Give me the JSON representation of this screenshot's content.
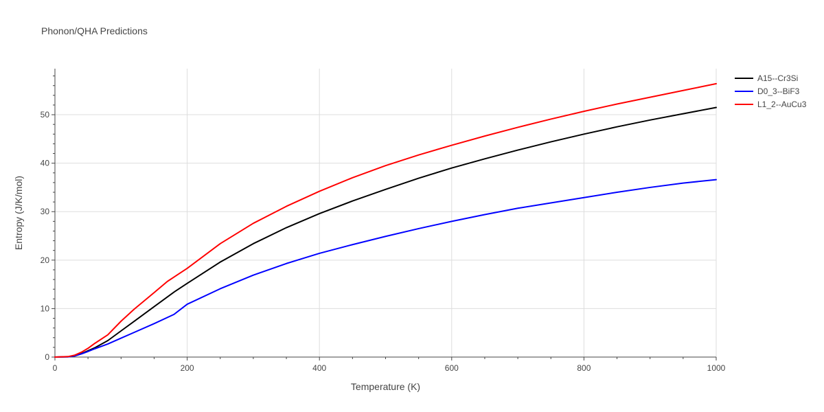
{
  "chart_data": {
    "type": "line",
    "title": "Phonon/QHA Predictions",
    "xlabel": "Temperature (K)",
    "ylabel": "Entropy (J/K/mol)",
    "xlim": [
      0,
      1000
    ],
    "ylim": [
      0,
      59.5
    ],
    "x_ticks": [
      0,
      200,
      400,
      600,
      800,
      1000
    ],
    "x_tick_labels": [
      "0",
      "200",
      "400",
      "600",
      "800",
      "1000"
    ],
    "y_ticks": [
      0,
      10,
      20,
      30,
      40,
      50
    ],
    "y_tick_labels": [
      "0",
      "10",
      "20",
      "30",
      "40",
      "50"
    ],
    "grid": true,
    "legend_position": "top-right",
    "series": [
      {
        "name": "A15--Cr3Si",
        "color": "#000000",
        "x": [
          0,
          20,
          30,
          40,
          50,
          60,
          80,
          100,
          120,
          150,
          180,
          200,
          250,
          300,
          350,
          400,
          450,
          500,
          550,
          600,
          650,
          700,
          750,
          800,
          850,
          900,
          950,
          1000
        ],
        "y": [
          0,
          0.05,
          0.25,
          0.7,
          1.3,
          1.9,
          3.4,
          5.4,
          7.4,
          10.4,
          13.4,
          15.2,
          19.6,
          23.4,
          26.7,
          29.6,
          32.2,
          34.6,
          36.9,
          39.0,
          40.9,
          42.7,
          44.4,
          46.0,
          47.5,
          48.9,
          50.2,
          51.5
        ]
      },
      {
        "name": "D0_3--BiF3",
        "color": "#0000ff",
        "x": [
          0,
          20,
          30,
          40,
          50,
          60,
          80,
          100,
          120,
          150,
          180,
          200,
          250,
          300,
          350,
          400,
          450,
          500,
          550,
          600,
          650,
          700,
          750,
          800,
          850,
          900,
          950,
          1000
        ],
        "y": [
          0,
          0.05,
          0.25,
          0.65,
          1.15,
          1.7,
          2.7,
          3.9,
          5.1,
          6.9,
          8.8,
          10.9,
          14.1,
          16.9,
          19.3,
          21.4,
          23.2,
          24.9,
          26.5,
          28.0,
          29.4,
          30.7,
          31.8,
          32.9,
          34.0,
          35.0,
          35.9,
          36.6
        ]
      },
      {
        "name": "L1_2--AuCu3",
        "color": "#ff0000",
        "x": [
          0,
          20,
          30,
          40,
          50,
          60,
          80,
          100,
          120,
          150,
          170,
          200,
          250,
          300,
          350,
          400,
          450,
          500,
          550,
          600,
          650,
          700,
          750,
          800,
          850,
          900,
          950,
          1000
        ],
        "y": [
          0,
          0.1,
          0.4,
          1.0,
          1.8,
          2.8,
          4.6,
          7.4,
          9.9,
          13.3,
          15.6,
          18.3,
          23.4,
          27.6,
          31.1,
          34.2,
          37.0,
          39.5,
          41.7,
          43.7,
          45.6,
          47.4,
          49.1,
          50.7,
          52.2,
          53.6,
          55.0,
          56.4
        ]
      }
    ]
  }
}
